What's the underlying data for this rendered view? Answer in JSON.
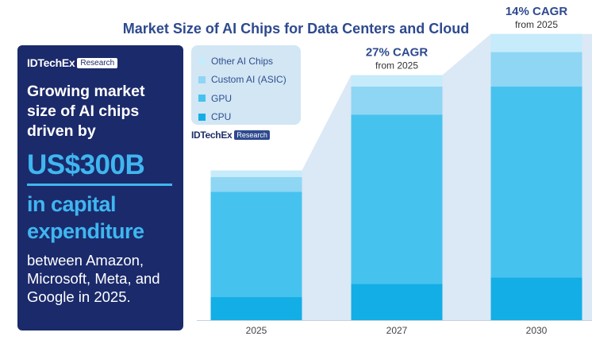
{
  "title": "Market Size of AI Chips for Data Centers and Cloud",
  "left_panel": {
    "logo_brand": "IDTechEx",
    "logo_tag": "Research",
    "headline": "Growing market size of AI chips driven by",
    "highlight": "US$300B",
    "subhighlight": "in capital expenditure",
    "body": "between Amazon, Microsoft, Meta, and Google in 2025."
  },
  "chart_logo": {
    "brand": "IDTechEx",
    "tag": "Research"
  },
  "chart_data": {
    "type": "bar",
    "stacked": true,
    "categories": [
      "2025",
      "2027",
      "2030"
    ],
    "series": [
      {
        "name": "CPU",
        "color": "#13aee6",
        "values": [
          14,
          22,
          26
        ]
      },
      {
        "name": "GPU",
        "color": "#46c2ee",
        "values": [
          64,
          103,
          116
        ]
      },
      {
        "name": "Custom AI (ASIC)",
        "color": "#8ed6f4",
        "values": [
          9,
          17,
          21
        ]
      },
      {
        "name": "Other AI Chips",
        "color": "#c6ebfa",
        "values": [
          4,
          7,
          11
        ]
      }
    ],
    "legend_order": [
      "Other AI Chips",
      "Custom AI (ASIC)",
      "GPU",
      "CPU"
    ],
    "legend_position": "top-left",
    "annotations": [
      {
        "category": "2027",
        "headline": "27% CAGR",
        "sub": "from 2025"
      },
      {
        "category": "2030",
        "headline": "14% CAGR",
        "sub": "from 2025"
      }
    ],
    "ylim": [
      0,
      185
    ],
    "grid": false,
    "y_axis_shown": false
  }
}
